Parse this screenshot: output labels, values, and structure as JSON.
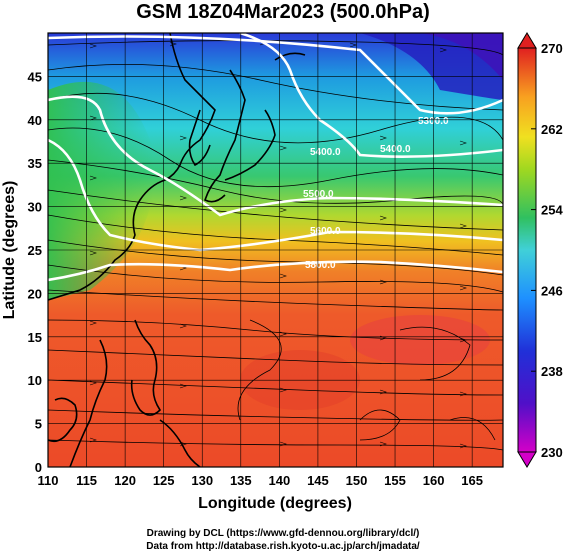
{
  "title": "GSM 18Z04Mar2023 (500.0hPa)",
  "x_axis": {
    "title": "Longitude (degrees)",
    "ticks": [
      "110",
      "115",
      "120",
      "125",
      "130",
      "135",
      "140",
      "145",
      "150",
      "155",
      "160",
      "165"
    ],
    "range": [
      110,
      169
    ]
  },
  "y_axis": {
    "title": "Latitude  (degrees)",
    "ticks": [
      "0",
      "5",
      "10",
      "15",
      "20",
      "25",
      "30",
      "35",
      "40",
      "45"
    ],
    "range": [
      0,
      50
    ]
  },
  "colorbar": {
    "ticks": [
      "230",
      "238",
      "246",
      "254",
      "262",
      "270"
    ],
    "range": [
      230,
      270
    ],
    "colors": [
      "#d400c8",
      "#2020d0",
      "#1e90ff",
      "#40d0e0",
      "#30c060",
      "#a0d820",
      "#f0e020",
      "#f8a020",
      "#f06020",
      "#e02020"
    ]
  },
  "contours": [
    {
      "label": "5300.0"
    },
    {
      "label": "5400.0"
    },
    {
      "label": "5400.0"
    },
    {
      "label": "5500.0"
    },
    {
      "label": "5600.0"
    },
    {
      "label": "5800.0"
    }
  ],
  "credits": {
    "line1": "Drawing by DCL (https://www.gfd-dennou.org/library/dcl/)",
    "line2": "Data from http://database.rish.kyoto-u.ac.jp/arch/jmadata/"
  }
}
